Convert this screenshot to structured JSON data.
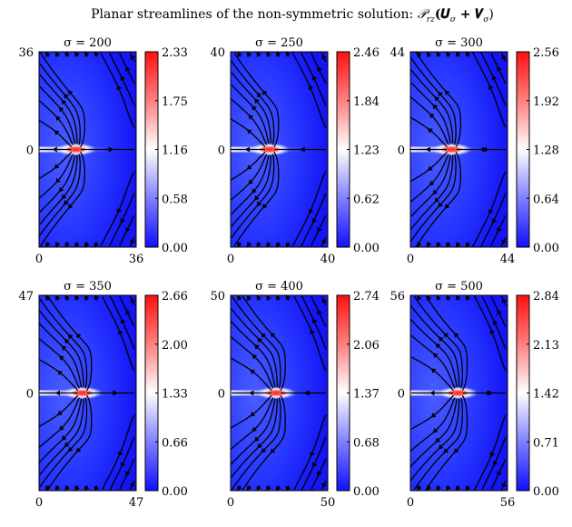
{
  "figure": {
    "title_prefix": "Planar streamlines of the non-symmetric solution: ",
    "title_math": "𝒫",
    "title_sub": "rz",
    "title_arg": "(𝑼",
    "title_sub2": "σ",
    "title_plus": " + 𝑽",
    "title_sub3": "σ",
    "title_close": ")"
  },
  "chart_data": [
    {
      "type": "heatmap",
      "title": "σ = 200",
      "sigma": 200,
      "domain_max": 36,
      "x_ticks": [
        "0",
        "36"
      ],
      "y_ticks": [
        "36",
        "0"
      ],
      "colorbar_ticks": [
        "2.33",
        "1.75",
        "1.16",
        "0.58",
        "0.00"
      ],
      "colorbar_range": [
        0.0,
        2.33
      ],
      "streamlines": true
    },
    {
      "type": "heatmap",
      "title": "σ = 250",
      "sigma": 250,
      "domain_max": 40,
      "x_ticks": [
        "0",
        "40"
      ],
      "y_ticks": [
        "40",
        "0"
      ],
      "colorbar_ticks": [
        "2.46",
        "1.84",
        "1.23",
        "0.62",
        "0.00"
      ],
      "colorbar_range": [
        0.0,
        2.46
      ],
      "streamlines": true
    },
    {
      "type": "heatmap",
      "title": "σ = 300",
      "sigma": 300,
      "domain_max": 44,
      "x_ticks": [
        "0",
        "44"
      ],
      "y_ticks": [
        "44",
        "0"
      ],
      "colorbar_ticks": [
        "2.56",
        "1.92",
        "1.28",
        "0.64",
        "0.00"
      ],
      "colorbar_range": [
        0.0,
        2.56
      ],
      "streamlines": true
    },
    {
      "type": "heatmap",
      "title": "σ = 350",
      "sigma": 350,
      "domain_max": 47,
      "x_ticks": [
        "0",
        "47"
      ],
      "y_ticks": [
        "47",
        "0"
      ],
      "colorbar_ticks": [
        "2.66",
        "2.00",
        "1.33",
        "0.66",
        "0.00"
      ],
      "colorbar_range": [
        0.0,
        2.66
      ],
      "streamlines": true
    },
    {
      "type": "heatmap",
      "title": "σ = 400",
      "sigma": 400,
      "domain_max": 50,
      "x_ticks": [
        "0",
        "50"
      ],
      "y_ticks": [
        "50",
        "0"
      ],
      "colorbar_ticks": [
        "2.74",
        "2.06",
        "1.37",
        "0.68",
        "0.00"
      ],
      "colorbar_range": [
        0.0,
        2.74
      ],
      "streamlines": true
    },
    {
      "type": "heatmap",
      "title": "σ = 500",
      "sigma": 500,
      "domain_max": 56,
      "x_ticks": [
        "0",
        "56"
      ],
      "y_ticks": [
        "56",
        "0"
      ],
      "colorbar_ticks": [
        "2.84",
        "2.13",
        "1.42",
        "0.71",
        "0.00"
      ],
      "colorbar_range": [
        0.0,
        2.84
      ],
      "streamlines": true
    }
  ],
  "colors": {
    "low": "#1a1aff",
    "mid": "#ffffff",
    "high": "#ff1a1a",
    "streamline": "#000000"
  }
}
